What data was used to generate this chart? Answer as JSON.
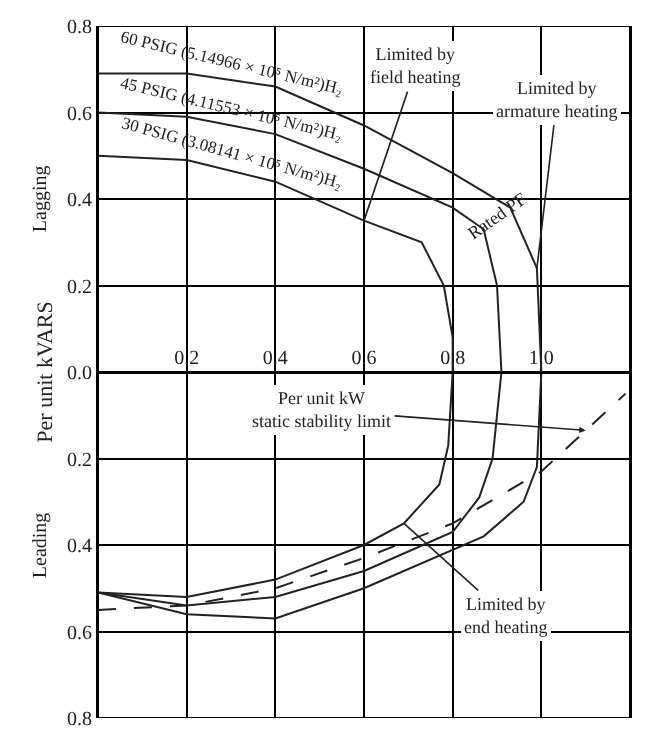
{
  "chart_data": {
    "type": "line",
    "ylabel": "Per unit kVARS",
    "xlim": [
      0,
      1.2
    ],
    "ylim": [
      -0.8,
      0.8
    ],
    "xticks": [
      0.2,
      0.4,
      0.6,
      0.8,
      {
        "value": 1.0,
        "label": "1.0"
      }
    ],
    "yticks": [
      {
        "value": 0.8,
        "label": "0.8"
      },
      {
        "value": 0.6,
        "label": "0.6"
      },
      {
        "value": 0.4,
        "label": "0.4"
      },
      {
        "value": 0.2,
        "label": "0.2"
      },
      {
        "value": 0,
        "label": "0.0"
      },
      {
        "value": -0.2,
        "label": "0.2"
      },
      {
        "value": -0.4,
        "label": "0.4"
      },
      {
        "value": -0.6,
        "label": "0.6"
      },
      {
        "value": -0.8,
        "label": "0.8"
      }
    ],
    "grid": true,
    "legend": false,
    "marker": "none",
    "series": [
      {
        "name": "60 PSIG (5.14966 × 10⁵ N/m²)H₂",
        "color": "#222222",
        "x": [
          0,
          0.2,
          0.4,
          0.6,
          0.8,
          0.93,
          0.99,
          1.0,
          1.0,
          0.99,
          0.96,
          0.87,
          0.6,
          0.4,
          0.2,
          0
        ],
        "values": [
          0.69,
          0.69,
          0.66,
          0.57,
          0.46,
          0.38,
          0.24,
          0,
          0,
          -0.22,
          -0.3,
          -0.38,
          -0.5,
          -0.57,
          -0.56,
          -0.51
        ]
      },
      {
        "name": "45 PSIG (4.11553 × 10⁵ N/m²)H₂",
        "color": "#222222",
        "x": [
          0,
          0.2,
          0.4,
          0.6,
          0.8,
          0.87,
          0.9,
          0.91,
          0.91,
          0.89,
          0.86,
          0.8,
          0.6,
          0.4,
          0.2,
          0
        ],
        "values": [
          0.6,
          0.59,
          0.55,
          0.47,
          0.38,
          0.33,
          0.2,
          0,
          0,
          -0.2,
          -0.29,
          -0.37,
          -0.46,
          -0.52,
          -0.54,
          -0.51
        ]
      },
      {
        "name": "30 PSIG (3.08141 × 10⁵ N/m²)H₂",
        "color": "#222222",
        "x": [
          0,
          0.2,
          0.4,
          0.6,
          0.73,
          0.78,
          0.8,
          0.8,
          0.79,
          0.77,
          0.69,
          0.6,
          0.4,
          0.2,
          0
        ],
        "values": [
          0.5,
          0.49,
          0.44,
          0.35,
          0.3,
          0.2,
          0.08,
          0,
          -0.17,
          -0.26,
          -0.35,
          -0.4,
          -0.48,
          -0.52,
          -0.51
        ]
      },
      {
        "color": "#222222",
        "line_style": "dashed",
        "x": [
          0,
          0.2,
          0.4,
          0.6,
          0.8,
          1.0,
          1.19
        ],
        "values": [
          -0.55,
          -0.54,
          -0.5,
          -0.43,
          -0.35,
          -0.23,
          -0.05
        ]
      }
    ],
    "annotations": [
      {
        "text": "Limited by field heating",
        "x": 0.6,
        "y": 0.35
      },
      {
        "text": "Limited by armature heating",
        "x": 0.99,
        "y": 0.24
      },
      "Rated PF",
      {
        "text": "Per unit kW static stability limit",
        "x": 1.1,
        "y": -0.135
      },
      {
        "text": "Limited by end heating",
        "x": 0.69,
        "y": -0.35
      },
      "Lagging",
      "Leading"
    ]
  }
}
